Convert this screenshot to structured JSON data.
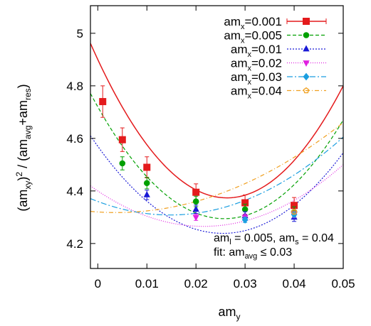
{
  "chart_data": {
    "type": "scatter",
    "xlabel": "am_y",
    "xlabel_parts": {
      "base": "am",
      "sub": "y"
    },
    "ylabel_parts": {
      "p1": "(am",
      "s1": "xy",
      "p2": ")",
      "sup": "2",
      "p3": " / (am",
      "s2": "avg",
      "p4": "+am",
      "s3": "res",
      "p5": ")"
    },
    "xlim": [
      -0.0015,
      0.05
    ],
    "ylim": [
      4.105,
      5.105
    ],
    "xticks": [
      0,
      0.01,
      0.02,
      0.03,
      0.04,
      0.05
    ],
    "xtick_labels": [
      "0",
      "0.01",
      "0.02",
      "0.03",
      "0.04",
      "0.05"
    ],
    "yticks": [
      4.2,
      4.4,
      4.6,
      4.8,
      5.0
    ],
    "ytick_labels": [
      "4.2",
      "4.4",
      "4.6",
      "4.8",
      "5"
    ],
    "legend_position": "top-right",
    "grid": false,
    "annotation": {
      "line1": {
        "a": "am",
        "a_sub": "l",
        "b": " = 0.005, am",
        "b_sub": "s",
        "c": " = 0.04"
      },
      "line2": {
        "a": "fit: am",
        "a_sub": "avg",
        "b": " ≤ 0.03"
      }
    },
    "series": [
      {
        "name_parts": {
          "base": "am",
          "sub": "x",
          "rest": "=0.001"
        },
        "color": "#e41a1c",
        "marker": "square-filled",
        "dash": "",
        "x": [
          0.001,
          0.005,
          0.01,
          0.02,
          0.03,
          0.04
        ],
        "y": [
          4.74,
          4.595,
          4.49,
          4.395,
          4.355,
          4.345
        ],
        "yerr": [
          0.06,
          0.045,
          0.04,
          0.032,
          0.03,
          0.03
        ],
        "fit": {
          "a": 4.9,
          "b": -40.0,
          "c": 760.0
        }
      },
      {
        "name_parts": {
          "base": "am",
          "sub": "x",
          "rest": "=0.005"
        },
        "color": "#00a000",
        "marker": "circle-filled",
        "dash": "5,3",
        "x": [
          0.005,
          0.01,
          0.02,
          0.03,
          0.04
        ],
        "y": [
          4.505,
          4.43,
          4.36,
          4.33,
          4.32
        ],
        "yerr": [
          0.025,
          0.022,
          0.02,
          0.02,
          0.02
        ],
        "fit": {
          "a": 4.72,
          "b": -33.0,
          "c": 640.0
        }
      },
      {
        "name_parts": {
          "base": "am",
          "sub": "x",
          "rest": "=0.01"
        },
        "color": "#1a1ad6",
        "marker": "triangle-up-filled",
        "dash": "2,2",
        "x": [
          0.01,
          0.02,
          0.03,
          0.04
        ],
        "y": [
          4.385,
          4.33,
          4.305,
          4.3
        ],
        "yerr": [
          0.018,
          0.016,
          0.016,
          0.016
        ],
        "fit": {
          "a": 4.57,
          "b": -26.0,
          "c": 510.0
        }
      },
      {
        "name_parts": {
          "base": "am",
          "sub": "x",
          "rest": "=0.02"
        },
        "color": "#e020e0",
        "marker": "triangle-down-filled",
        "dash": "1,2",
        "x": [
          0.02,
          0.03,
          0.04
        ],
        "y": [
          4.3,
          4.3,
          4.31
        ],
        "yerr": [
          0.012,
          0.012,
          0.012
        ],
        "fit": {
          "a": 4.4,
          "b": -12.5,
          "c": 290.0
        }
      },
      {
        "name_parts": {
          "base": "am",
          "sub": "x",
          "rest": "=0.03"
        },
        "color": "#1a9ee0",
        "marker": "diamond-filled",
        "dash": "8,3,2,3",
        "x": [
          0.03,
          0.04
        ],
        "y": [
          4.29,
          4.31
        ],
        "yerr": [
          0.01,
          0.01
        ],
        "fit": {
          "a": 4.36,
          "b": -7.0,
          "c": 238.0
        }
      },
      {
        "name_parts": {
          "base": "am",
          "sub": "x",
          "rest": "=0.04"
        },
        "color": "#f0a020",
        "marker": "pentagon-open",
        "dash": "6,3,1,3",
        "x": [
          0.04
        ],
        "y": [
          4.32
        ],
        "yerr": [
          0.008
        ],
        "fit": {
          "a": 4.32,
          "b": -1.2,
          "c": 160.0
        }
      }
    ]
  }
}
